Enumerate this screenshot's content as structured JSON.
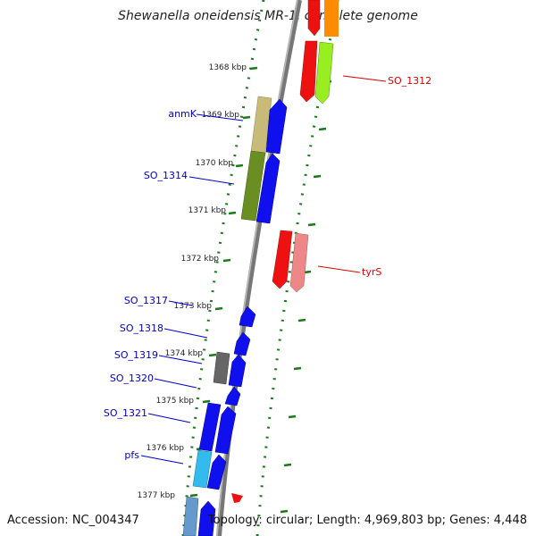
{
  "title": "Shewanella oneidensis MR-1, complete genome",
  "accession": "Accession: NC_004347",
  "summary": "Topology: circular; Length: 4,969,803 bp; Genes: 4,448",
  "colors": {
    "forward_label": "#0000cc",
    "reverse_label": "#dd0000",
    "tick": "#1a7a1a",
    "backbone": "#888888"
  },
  "ruler": [
    {
      "label": "1368 kbp"
    },
    {
      "label": "1369 kbp"
    },
    {
      "label": "1370 kbp"
    },
    {
      "label": "1371 kbp"
    },
    {
      "label": "1372 kbp"
    },
    {
      "label": "1373 kbp"
    },
    {
      "label": "1374 kbp"
    },
    {
      "label": "1375 kbp"
    },
    {
      "label": "1376 kbp"
    },
    {
      "label": "1377 kbp"
    }
  ],
  "gene_labels": [
    {
      "name": "anmK",
      "strand": "forward"
    },
    {
      "name": "SO_1314",
      "strand": "forward"
    },
    {
      "name": "SO_1317",
      "strand": "forward"
    },
    {
      "name": "SO_1318",
      "strand": "forward"
    },
    {
      "name": "SO_1319",
      "strand": "forward"
    },
    {
      "name": "SO_1320",
      "strand": "forward"
    },
    {
      "name": "SO_1321",
      "strand": "forward"
    },
    {
      "name": "pfs",
      "strand": "forward"
    },
    {
      "name": "SO_1312",
      "strand": "reverse"
    },
    {
      "name": "tyrS",
      "strand": "reverse"
    }
  ]
}
